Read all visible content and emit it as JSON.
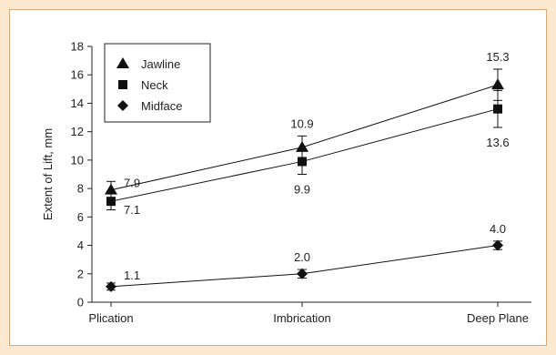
{
  "chart_data": {
    "type": "line",
    "title": "",
    "xlabel": "",
    "ylabel": "Extent of Lift, mm",
    "categories": [
      "Plication",
      "Imbrication",
      "Deep Plane"
    ],
    "ylim": [
      0,
      18
    ],
    "yticks": [
      "0",
      "2",
      "4",
      "6",
      "8",
      "10",
      "12",
      "14",
      "16",
      "18"
    ],
    "grid": false,
    "legend_position": "top-left",
    "series": [
      {
        "name": "Jawline",
        "marker": "triangle",
        "values": [
          7.9,
          10.9,
          15.3
        ],
        "errors": [
          0.6,
          0.8,
          1.1
        ],
        "labels": [
          "7.9",
          "10.9",
          "15.3"
        ],
        "label_pos": [
          "right",
          "above",
          "above"
        ]
      },
      {
        "name": "Neck",
        "marker": "square",
        "values": [
          7.1,
          9.9,
          13.6
        ],
        "errors": [
          0.6,
          0.9,
          1.3
        ],
        "labels": [
          "7.1",
          "9.9",
          "13.6"
        ],
        "label_pos": [
          "right",
          "below",
          "below"
        ]
      },
      {
        "name": "Midface",
        "marker": "diamond",
        "values": [
          1.1,
          2.0,
          4.0
        ],
        "errors": [
          0.25,
          0.3,
          0.3
        ],
        "labels": [
          "1.1",
          "2.0",
          "4.0"
        ],
        "label_pos": [
          "upper-right",
          "above",
          "above"
        ]
      }
    ]
  }
}
